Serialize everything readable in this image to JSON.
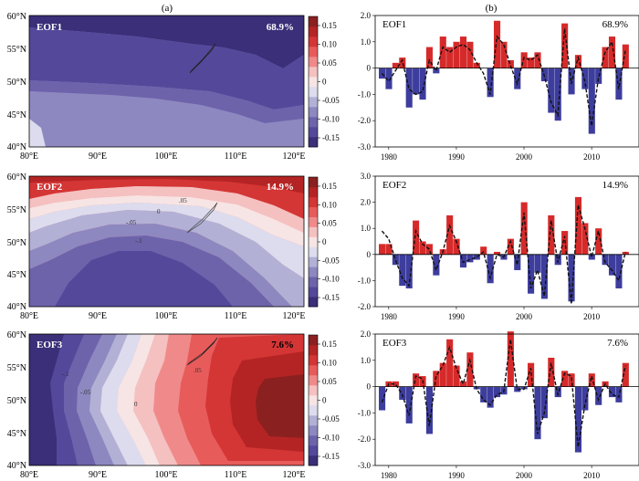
{
  "panel_labels": {
    "left": "(a)",
    "right": "(b)"
  },
  "colors": {
    "positive": "#d62a2a",
    "negative": "#3d3d9e",
    "scale": [
      "#3a2f78",
      "#54489a",
      "#6d63ab",
      "#8d88c0",
      "#b3b0d6",
      "#dcdcee",
      "#f7e4e4",
      "#f5c0c0",
      "#f08a8a",
      "#e85b5b",
      "#d43535",
      "#b52424",
      "#8b2020"
    ]
  },
  "colorbar": {
    "ticks": [
      "0.15",
      "0.10",
      "0.05",
      "0",
      "-0.05",
      "-0.10",
      "-0.15"
    ]
  },
  "map_axes": {
    "lon_ticks": [
      "80°E",
      "90°E",
      "100°E",
      "110°E",
      "120°E"
    ],
    "lat_ticks": [
      "60°N",
      "55°N",
      "50°N",
      "45°N",
      "40°N"
    ]
  },
  "chart_data": [
    {
      "type": "bar",
      "title": "EOF1",
      "annotation": "68.9%",
      "x": [
        1979,
        1980,
        1981,
        1982,
        1983,
        1984,
        1985,
        1986,
        1987,
        1988,
        1989,
        1990,
        1991,
        1992,
        1993,
        1994,
        1995,
        1996,
        1997,
        1998,
        1999,
        2000,
        2001,
        2002,
        2003,
        2004,
        2005,
        2006,
        2007,
        2008,
        2009,
        2010,
        2011,
        2012,
        2013,
        2014,
        2015,
        2016
      ],
      "values": [
        -0.4,
        -0.8,
        0.2,
        0.4,
        -1.5,
        -1.0,
        -1.2,
        0.8,
        -0.2,
        1.2,
        0.8,
        1.0,
        1.2,
        1.0,
        0.2,
        0.0,
        -1.1,
        1.8,
        1.0,
        0.3,
        -0.8,
        0.6,
        0.4,
        0.6,
        -0.5,
        -1.7,
        -2.0,
        1.7,
        -1.0,
        0.5,
        -0.8,
        -2.5,
        -0.6,
        0.8,
        1.2,
        -1.2,
        0.9,
        null
      ],
      "line": [
        -0.2,
        -0.5,
        -0.1,
        0.3,
        -0.8,
        -1.0,
        -0.9,
        0.3,
        -0.1,
        0.8,
        0.6,
        0.8,
        0.9,
        0.7,
        0.2,
        -0.2,
        -1.0,
        1.2,
        0.9,
        0.1,
        -0.6,
        0.4,
        0.3,
        0.5,
        -0.3,
        -1.3,
        -1.8,
        1.5,
        -0.6,
        0.4,
        -0.5,
        -2.2,
        -0.4,
        0.6,
        1.0,
        -0.8,
        0.7,
        null
      ],
      "xticks": [
        1980,
        1990,
        2000,
        2010
      ],
      "ylim": [
        -3.0,
        2.0
      ],
      "yticks": [
        "2.0",
        "1.0",
        "0",
        "-1.0",
        "-2.0",
        "-3.0"
      ]
    },
    {
      "type": "bar",
      "title": "EOF2",
      "annotation": "14.9%",
      "x": [
        1979,
        1980,
        1981,
        1982,
        1983,
        1984,
        1985,
        1986,
        1987,
        1988,
        1989,
        1990,
        1991,
        1992,
        1993,
        1994,
        1995,
        1996,
        1997,
        1998,
        1999,
        2000,
        2001,
        2002,
        2003,
        2004,
        2005,
        2006,
        2007,
        2008,
        2009,
        2010,
        2011,
        2012,
        2013,
        2014,
        2015,
        2016
      ],
      "values": [
        0.4,
        0.4,
        -0.4,
        -1.2,
        -1.3,
        1.3,
        0.5,
        0.4,
        -0.8,
        0.2,
        1.5,
        0.6,
        -0.5,
        -0.3,
        -0.2,
        0.3,
        -1.1,
        0.1,
        -0.2,
        0.6,
        -0.6,
        2.0,
        -1.5,
        -0.7,
        -1.7,
        1.5,
        -0.4,
        0.9,
        -1.8,
        2.2,
        1.2,
        -0.2,
        1.0,
        -0.4,
        -0.8,
        -1.3,
        0.1,
        null
      ],
      "line": [
        0.9,
        0.6,
        -0.2,
        -0.9,
        -1.2,
        0.9,
        0.4,
        0.2,
        -0.6,
        0.1,
        1.1,
        0.5,
        -0.3,
        -0.2,
        -0.1,
        0.1,
        -0.9,
        0.0,
        -0.1,
        0.5,
        -0.4,
        1.6,
        -1.3,
        -0.6,
        -1.6,
        1.3,
        -0.3,
        0.7,
        -1.9,
        1.9,
        1.0,
        -0.1,
        0.9,
        -0.3,
        -0.6,
        -1.0,
        0.1,
        null
      ],
      "xticks": [
        1980,
        1990,
        2000,
        2010
      ],
      "ylim": [
        -2.0,
        3.0
      ],
      "yticks": [
        "3.0",
        "2.0",
        "1.0",
        "0",
        "-1.0",
        "-2.0"
      ]
    },
    {
      "type": "bar",
      "title": "EOF3",
      "annotation": "7.6%",
      "x": [
        1979,
        1980,
        1981,
        1982,
        1983,
        1984,
        1985,
        1986,
        1987,
        1988,
        1989,
        1990,
        1991,
        1992,
        1993,
        1994,
        1995,
        1996,
        1997,
        1998,
        1999,
        2000,
        2001,
        2002,
        2003,
        2004,
        2005,
        2006,
        2007,
        2008,
        2009,
        2010,
        2011,
        2012,
        2013,
        2014,
        2015,
        2016
      ],
      "values": [
        -0.9,
        0.2,
        0.2,
        -0.5,
        -1.4,
        0.5,
        0.4,
        -1.8,
        0.6,
        0.9,
        1.8,
        0.8,
        0.2,
        1.3,
        -0.1,
        -0.6,
        -0.8,
        -0.4,
        -0.3,
        2.1,
        -0.2,
        -0.1,
        0.9,
        -2.0,
        -1.2,
        1.1,
        -0.4,
        0.6,
        0.5,
        -2.5,
        -0.9,
        0.5,
        -0.7,
        0.2,
        -0.4,
        -0.6,
        0.9,
        null
      ],
      "line": [
        -0.6,
        0.1,
        0.1,
        -0.3,
        -1.1,
        0.4,
        0.3,
        -1.5,
        0.4,
        0.8,
        1.5,
        0.7,
        0.1,
        1.0,
        -0.1,
        -0.5,
        -0.7,
        -0.3,
        -0.2,
        1.8,
        -0.1,
        -0.1,
        0.7,
        -1.8,
        -1.0,
        0.9,
        -0.3,
        0.5,
        0.4,
        -2.3,
        -0.7,
        0.4,
        -0.5,
        0.1,
        -0.3,
        -0.4,
        0.8,
        null
      ],
      "xticks": [
        1980,
        1990,
        2000,
        2010
      ],
      "ylim": [
        -3.0,
        2.0
      ],
      "yticks": [
        "2.0",
        "1.0",
        "0",
        "-1.0",
        "-2.0",
        "-3.0"
      ]
    }
  ],
  "maps": [
    {
      "title": "EOF1",
      "annotation": "68.9%",
      "contour_labels": []
    },
    {
      "title": "EOF2",
      "annotation": "14.9%",
      "contour_labels": [
        "0",
        "-.05",
        ".05",
        "-.1"
      ]
    },
    {
      "title": "EOF3",
      "annotation": "7.6%",
      "contour_labels": [
        "0",
        "-.05",
        ".05",
        "-.1"
      ]
    }
  ]
}
